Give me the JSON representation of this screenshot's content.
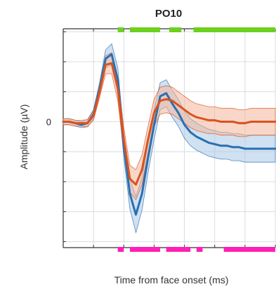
{
  "chart_data": {
    "type": "line",
    "title": "PO10",
    "xlabel": "Time from face onset (ms)",
    "ylabel": "Amplitude (µV)",
    "xlim": [
      -100,
      600
    ],
    "ylim": [
      -4.2,
      3.1
    ],
    "y_tick_labels": [
      {
        "value": 0,
        "label": "0"
      }
    ],
    "grid": true,
    "legend": "none",
    "series": [
      {
        "color": "#2a6fb0",
        "band_color": "#a9c9e8",
        "x": [
          -100,
          -80,
          -60,
          -40,
          -20,
          0,
          20,
          40,
          60,
          80,
          100,
          120,
          140,
          160,
          180,
          200,
          220,
          240,
          260,
          280,
          300,
          320,
          340,
          360,
          380,
          400,
          420,
          440,
          460,
          480,
          500,
          520,
          540,
          560,
          580,
          600
        ],
        "y": [
          0.0,
          0.0,
          -0.05,
          -0.1,
          -0.05,
          0.25,
          1.1,
          2.1,
          2.25,
          1.4,
          -0.8,
          -2.4,
          -3.1,
          -2.4,
          -1.2,
          -0.1,
          0.85,
          0.95,
          0.6,
          0.3,
          -0.1,
          -0.35,
          -0.5,
          -0.6,
          -0.7,
          -0.75,
          -0.8,
          -0.8,
          -0.85,
          -0.85,
          -0.9,
          -0.9,
          -0.9,
          -0.9,
          -0.9,
          -0.9
        ],
        "ci_halfwidth": [
          0.1,
          0.1,
          0.1,
          0.1,
          0.12,
          0.15,
          0.2,
          0.3,
          0.35,
          0.4,
          0.4,
          0.5,
          0.6,
          0.55,
          0.5,
          0.5,
          0.45,
          0.45,
          0.45,
          0.45,
          0.45,
          0.45,
          0.45,
          0.45,
          0.45,
          0.45,
          0.45,
          0.45,
          0.45,
          0.45,
          0.45,
          0.45,
          0.45,
          0.45,
          0.45,
          0.45
        ]
      },
      {
        "color": "#d9531e",
        "band_color": "#f2b79a",
        "x": [
          -100,
          -80,
          -60,
          -40,
          -20,
          0,
          20,
          40,
          60,
          80,
          100,
          120,
          140,
          160,
          180,
          200,
          220,
          240,
          260,
          280,
          300,
          320,
          340,
          360,
          380,
          400,
          420,
          440,
          460,
          480,
          500,
          520,
          540,
          560,
          580,
          600
        ],
        "y": [
          0.0,
          0.0,
          -0.05,
          -0.05,
          -0.05,
          0.2,
          1.0,
          1.9,
          1.95,
          1.1,
          -0.6,
          -1.9,
          -2.1,
          -1.6,
          -0.6,
          0.3,
          0.7,
          0.75,
          0.7,
          0.55,
          0.4,
          0.25,
          0.15,
          0.1,
          0.05,
          0.05,
          0.0,
          0.0,
          0.0,
          -0.05,
          -0.05,
          0.0,
          0.0,
          0.0,
          0.0,
          0.0
        ],
        "ci_halfwidth": [
          0.1,
          0.1,
          0.1,
          0.1,
          0.12,
          0.15,
          0.2,
          0.3,
          0.35,
          0.4,
          0.4,
          0.45,
          0.5,
          0.5,
          0.45,
          0.45,
          0.45,
          0.45,
          0.45,
          0.45,
          0.45,
          0.45,
          0.45,
          0.45,
          0.45,
          0.45,
          0.45,
          0.45,
          0.45,
          0.45,
          0.45,
          0.45,
          0.45,
          0.45,
          0.45,
          0.45
        ]
      }
    ],
    "significance_bars": [
      {
        "position": "top",
        "color": "#6cd11e",
        "intervals": [
          [
            80,
            100
          ],
          [
            120,
            220
          ],
          [
            250,
            290
          ],
          [
            330,
            600
          ]
        ]
      },
      {
        "position": "bottom",
        "color": "#ff1fb4",
        "intervals": [
          [
            80,
            100
          ],
          [
            120,
            220
          ],
          [
            240,
            320
          ],
          [
            340,
            360
          ],
          [
            430,
            600
          ]
        ]
      }
    ]
  }
}
